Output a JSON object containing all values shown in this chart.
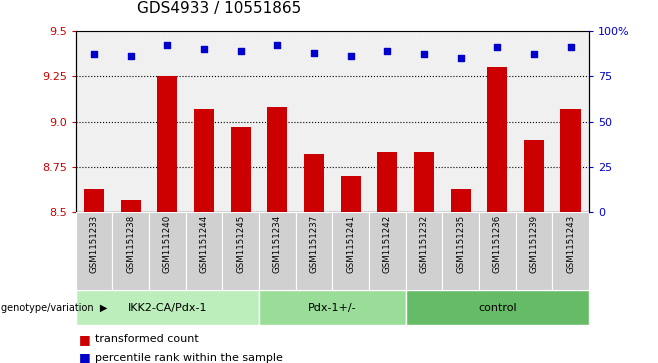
{
  "title": "GDS4933 / 10551865",
  "samples": [
    "GSM1151233",
    "GSM1151238",
    "GSM1151240",
    "GSM1151244",
    "GSM1151245",
    "GSM1151234",
    "GSM1151237",
    "GSM1151241",
    "GSM1151242",
    "GSM1151232",
    "GSM1151235",
    "GSM1151236",
    "GSM1151239",
    "GSM1151243"
  ],
  "transformed_counts": [
    8.63,
    8.57,
    9.25,
    9.07,
    8.97,
    9.08,
    8.82,
    8.7,
    8.83,
    8.83,
    8.63,
    9.3,
    8.9,
    9.07
  ],
  "percentile_ranks": [
    87,
    86,
    92,
    90,
    89,
    92,
    88,
    86,
    89,
    87,
    85,
    91,
    87,
    91
  ],
  "groups": [
    {
      "label": "IKK2-CA/Pdx-1",
      "start": 0,
      "end": 5,
      "color": "#bbeebb"
    },
    {
      "label": "Pdx-1+/-",
      "start": 5,
      "end": 9,
      "color": "#99dd99"
    },
    {
      "label": "control",
      "start": 9,
      "end": 14,
      "color": "#66bb66"
    }
  ],
  "ylim": [
    8.5,
    9.5
  ],
  "yticks": [
    8.5,
    8.75,
    9.0,
    9.25,
    9.5
  ],
  "right_ylim": [
    0,
    100
  ],
  "right_yticks": [
    0,
    25,
    50,
    75,
    100
  ],
  "right_yticklabels": [
    "0",
    "25",
    "50",
    "75",
    "100%"
  ],
  "bar_color": "#cc0000",
  "scatter_color": "#0000cc",
  "bar_width": 0.55,
  "xlabel_left": "genotype/variation",
  "legend_transformed": "transformed count",
  "legend_percentile": "percentile rank within the sample",
  "grid_color": "#000000",
  "title_fontsize": 11,
  "tick_fontsize": 8,
  "sample_bg_color": "#d0d0d0",
  "plot_bg_color": "#f0f0f0"
}
